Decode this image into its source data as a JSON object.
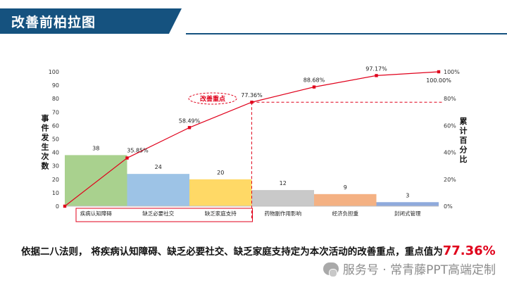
{
  "page": {
    "title": "改善前柏拉图",
    "conclusion_prefix": "依据二八法则， 将疾病认知障碍、缺乏必要社交、缺乏家庭支持定为本次活动的改善重点，重点值为",
    "conclusion_value": "77.36%",
    "watermark": "服务号 · 常青藤PPT高端定制",
    "watermark_icon": "wechat-icon"
  },
  "colors": {
    "banner": "#15527f",
    "line": "#e0001b",
    "highlight": "#e0001b"
  },
  "chart_data": {
    "type": "bar",
    "categories": [
      "疾病认知障碍",
      "缺乏必要社交",
      "缺乏家庭支持",
      "药物副作用影响",
      "经济负担重",
      "封闭式管理"
    ],
    "values": [
      38,
      24,
      20,
      12,
      9,
      3
    ],
    "bar_colors": [
      "#a9d18e",
      "#9dc3e6",
      "#ffd966",
      "#c9c9c9",
      "#f4b183",
      "#8faadc"
    ],
    "value_labels": [
      "38",
      "24",
      "20",
      "12",
      "9",
      "3"
    ],
    "cumulative_percent": [
      0,
      35.85,
      58.49,
      77.36,
      88.68,
      97.17,
      100
    ],
    "cumulative_labels": [
      "35.85%",
      "58.49%",
      "77.36%",
      "88.68%",
      "97.17%",
      "100.00%"
    ],
    "ylabel_left": "事件发生次数",
    "ylabel_right": "累计百分比",
    "yticks_left": [
      "0",
      "10",
      "20",
      "30",
      "40",
      "50",
      "60",
      "70",
      "80",
      "90",
      "100"
    ],
    "yticks_right": [
      "0%",
      "20%",
      "40%",
      "60%",
      "80%",
      "100%"
    ],
    "ylim_left": [
      0,
      100
    ],
    "ylim_right": [
      0,
      100
    ],
    "annotation": "改善重点",
    "focus_count": 3,
    "focus_percent": 77.36
  }
}
